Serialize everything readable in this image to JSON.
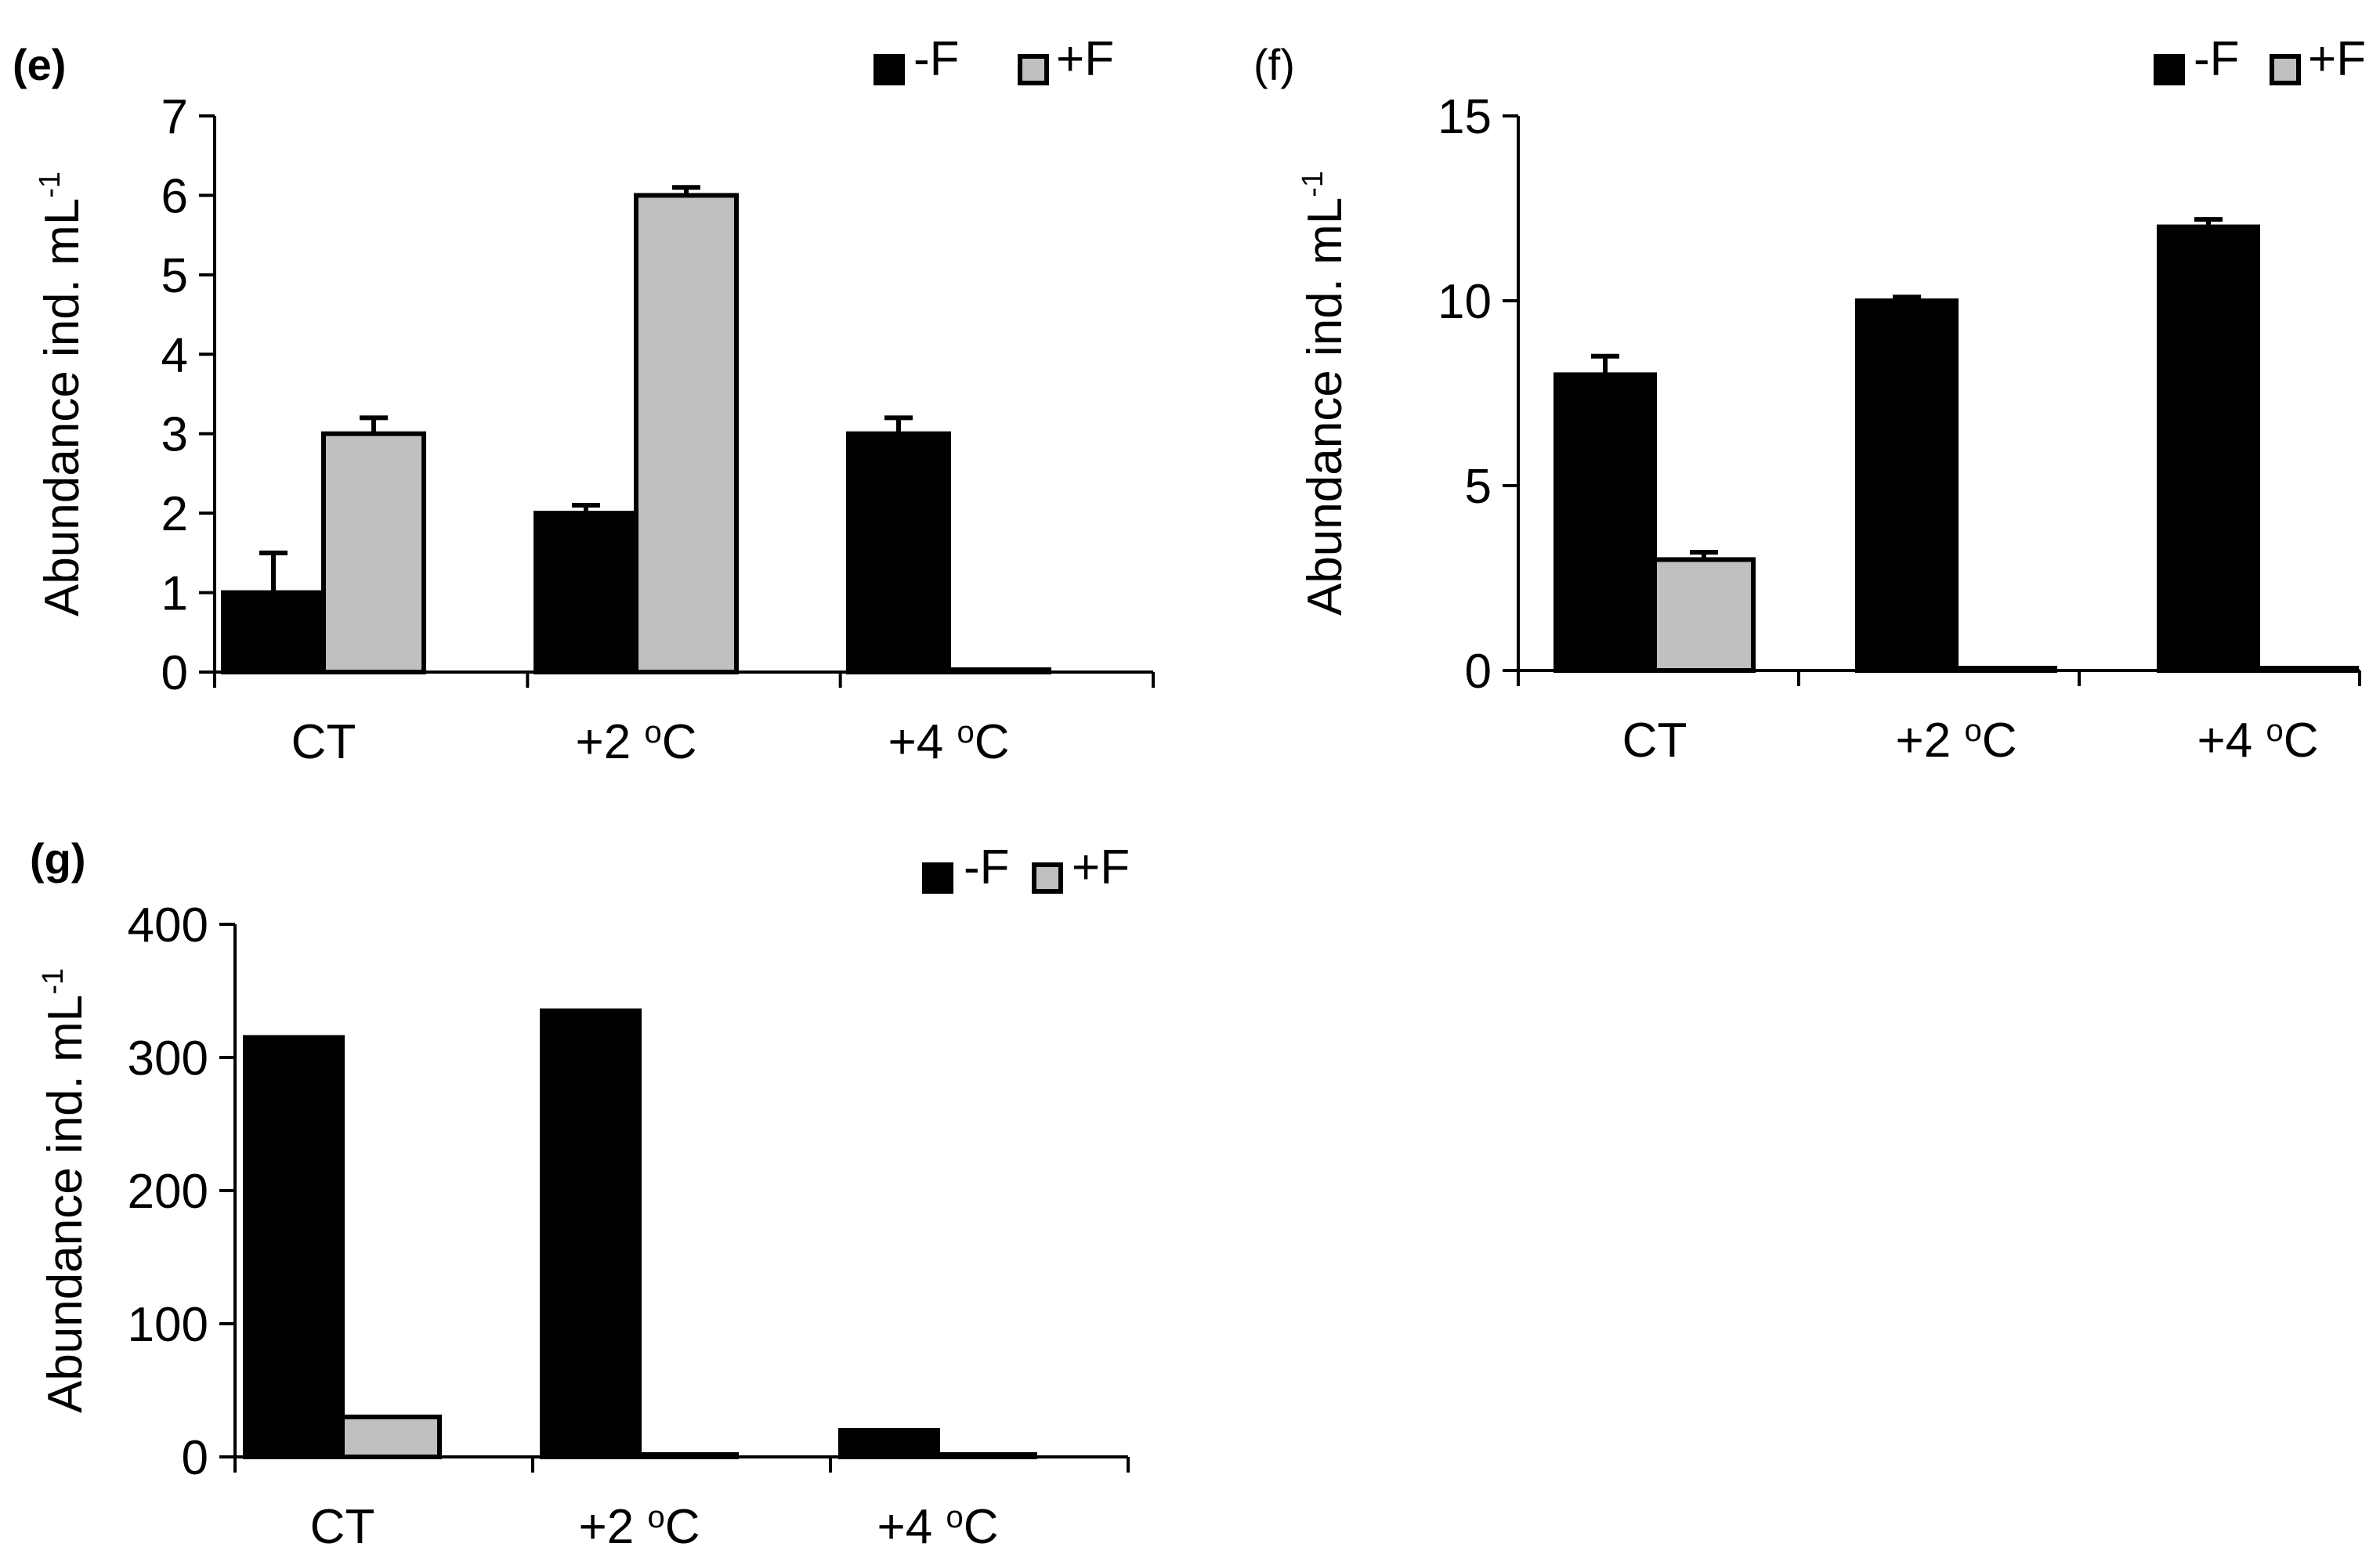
{
  "colors": {
    "minus_F": "#000000",
    "plus_F": "#c0c0c0",
    "axis": "#000000"
  },
  "chart_data": [
    {
      "panel": "(e)",
      "type": "bar",
      "categories": [
        "CT",
        "+2 oC",
        "+4 oC"
      ],
      "category_labels": [
        {
          "text": "CT",
          "sup": ""
        },
        {
          "text": "+2 ",
          "sup": "o",
          "unit": "C"
        },
        {
          "text": "+4 ",
          "sup": "o",
          "unit": "C"
        }
      ],
      "series": [
        {
          "name": "-F",
          "values": [
            1,
            2,
            3
          ],
          "errors": [
            0.5,
            0.1,
            0.2
          ]
        },
        {
          "name": "+F",
          "values": [
            3,
            6,
            0.02
          ],
          "errors": [
            0.2,
            0.1,
            0
          ]
        }
      ],
      "legend": [
        "-F",
        "+F"
      ],
      "ylabel": "Abundance ind. mL",
      "ylabel_sup": "-1",
      "ylim": [
        0,
        7
      ],
      "yticks": [
        0,
        1,
        2,
        3,
        4,
        5,
        6,
        7
      ],
      "legend_position": "top-right"
    },
    {
      "panel": "(f)",
      "type": "bar",
      "categories": [
        "CT",
        "+2 oC",
        "+4 oC"
      ],
      "category_labels": [
        {
          "text": "CT",
          "sup": ""
        },
        {
          "text": "+2 ",
          "sup": "o",
          "unit": "C"
        },
        {
          "text": "+4 ",
          "sup": "o",
          "unit": "C"
        }
      ],
      "series": [
        {
          "name": "-F",
          "values": [
            8,
            10,
            12
          ],
          "errors": [
            0.5,
            0.1,
            0.2
          ]
        },
        {
          "name": "+F",
          "values": [
            3,
            0.05,
            0.02
          ],
          "errors": [
            0.2,
            0,
            0
          ]
        }
      ],
      "legend": [
        "-F",
        "+F"
      ],
      "ylabel": "Abundance ind. mL",
      "ylabel_sup": "-1",
      "ylim": [
        0,
        15
      ],
      "yticks": [
        0,
        5,
        10,
        15
      ],
      "legend_position": "top-right"
    },
    {
      "panel": "(g)",
      "type": "bar",
      "categories": [
        "CT",
        "+2 oC",
        "+4 oC"
      ],
      "category_labels": [
        {
          "text": "CT",
          "sup": ""
        },
        {
          "text": "+2 ",
          "sup": "o",
          "unit": "C"
        },
        {
          "text": "+4 ",
          "sup": "o",
          "unit": "C"
        }
      ],
      "series": [
        {
          "name": "-F",
          "values": [
            315,
            335,
            20
          ],
          "errors": [
            0,
            0,
            0
          ]
        },
        {
          "name": "+F",
          "values": [
            30,
            1,
            1
          ],
          "errors": [
            0,
            0,
            0
          ]
        }
      ],
      "legend": [
        "-F",
        "+F"
      ],
      "ylabel": "Abundance ind. mL",
      "ylabel_sup": "-1",
      "ylim": [
        0,
        400
      ],
      "yticks": [
        0,
        100,
        200,
        300,
        400
      ],
      "legend_position": "top-right"
    }
  ]
}
